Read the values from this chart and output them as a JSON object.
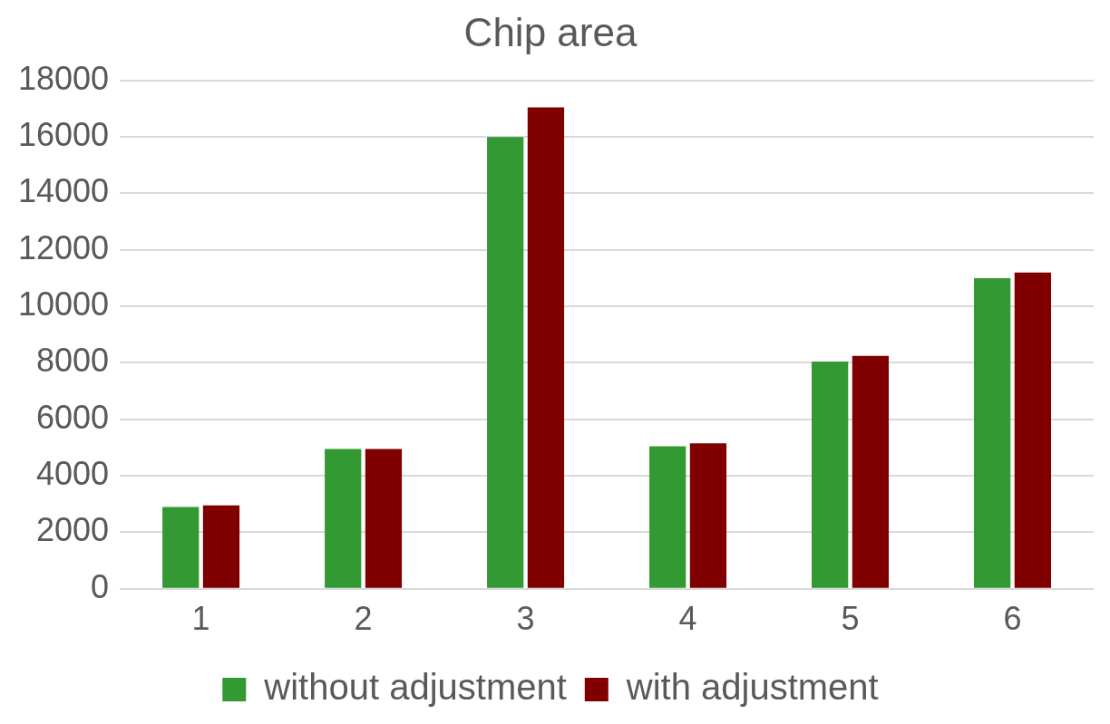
{
  "chart_data": {
    "type": "bar",
    "title": "Chip area",
    "categories": [
      "1",
      "2",
      "3",
      "4",
      "5",
      "6"
    ],
    "series": [
      {
        "name": "without adjustment",
        "color": "#339933",
        "values": [
          2900,
          4950,
          16000,
          5050,
          8050,
          11000
        ]
      },
      {
        "name": "with adjustment",
        "color": "#800000",
        "values": [
          2950,
          4950,
          17050,
          5150,
          8250,
          11200
        ]
      }
    ],
    "ylim": [
      0,
      18000
    ],
    "yticks": [
      0,
      2000,
      4000,
      6000,
      8000,
      10000,
      12000,
      14000,
      16000,
      18000
    ],
    "grid": "y",
    "legend": "bottom"
  }
}
